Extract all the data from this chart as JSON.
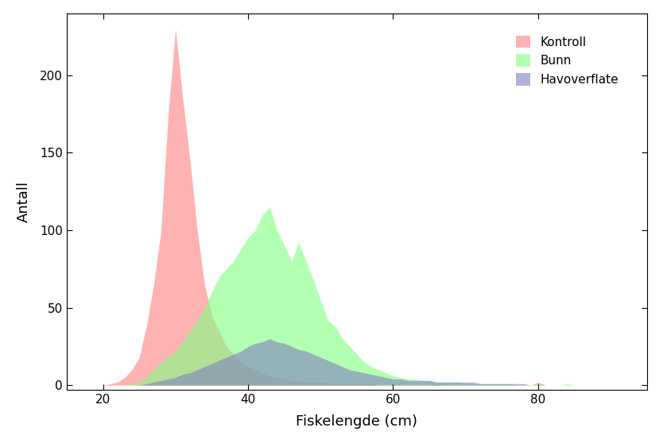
{
  "title": "",
  "xlabel": "Fiskelengde (cm)",
  "ylabel": "Antall",
  "xlim": [
    15,
    95
  ],
  "ylim": [
    -3,
    240
  ],
  "xticks": [
    20,
    40,
    60,
    80
  ],
  "yticks": [
    0,
    50,
    100,
    150,
    200
  ],
  "legend_labels": [
    "Kontroll",
    "Bunn",
    "Havoverflate"
  ],
  "colors": [
    "#FF8080",
    "#80FF80",
    "#8080C0"
  ],
  "alpha": 0.6,
  "background_color": "#FFFFFF",
  "kontroll": {
    "x": [
      15,
      16,
      17,
      18,
      19,
      20,
      21,
      22,
      23,
      24,
      25,
      26,
      27,
      28,
      29,
      30,
      31,
      32,
      33,
      34,
      35,
      36,
      37,
      38,
      39,
      40,
      41,
      42,
      43,
      44,
      45,
      46,
      47,
      48,
      49,
      50,
      51,
      52,
      53,
      54,
      55,
      56,
      57,
      58,
      59,
      60,
      61,
      62,
      63,
      64,
      65,
      66,
      67,
      68,
      69,
      70,
      71,
      72,
      73,
      74,
      75,
      76,
      77,
      78,
      79,
      80,
      81,
      82,
      83,
      84,
      85,
      86,
      87,
      88,
      89,
      90,
      91,
      92,
      93,
      94
    ],
    "y": [
      0,
      0,
      0,
      0,
      0,
      0,
      1,
      2,
      5,
      10,
      18,
      38,
      65,
      100,
      175,
      230,
      185,
      145,
      100,
      65,
      45,
      35,
      25,
      20,
      15,
      12,
      10,
      8,
      6,
      5,
      4,
      3,
      3,
      2,
      2,
      2,
      1,
      1,
      1,
      1,
      1,
      1,
      1,
      0,
      0,
      0,
      0,
      0,
      0,
      0,
      0,
      1,
      0,
      0,
      0,
      0,
      0,
      0,
      0,
      0,
      0,
      0,
      0,
      0,
      0,
      2,
      0,
      0,
      0,
      0,
      0,
      0,
      0,
      0,
      0,
      0,
      0,
      0,
      0,
      0
    ]
  },
  "bunn": {
    "x": [
      15,
      16,
      17,
      18,
      19,
      20,
      21,
      22,
      23,
      24,
      25,
      26,
      27,
      28,
      29,
      30,
      31,
      32,
      33,
      34,
      35,
      36,
      37,
      38,
      39,
      40,
      41,
      42,
      43,
      44,
      45,
      46,
      47,
      48,
      49,
      50,
      51,
      52,
      53,
      54,
      55,
      56,
      57,
      58,
      59,
      60,
      61,
      62,
      63,
      64,
      65,
      66,
      67,
      68,
      69,
      70,
      71,
      72,
      73,
      74,
      75,
      76,
      77,
      78,
      79,
      80,
      81,
      82,
      83,
      84,
      85,
      86,
      87,
      88,
      89,
      90,
      91,
      92,
      93,
      94
    ],
    "y": [
      0,
      0,
      0,
      0,
      0,
      0,
      0,
      0,
      0,
      1,
      2,
      5,
      10,
      15,
      18,
      22,
      28,
      35,
      42,
      50,
      60,
      70,
      75,
      80,
      88,
      95,
      100,
      110,
      115,
      100,
      90,
      80,
      92,
      80,
      68,
      55,
      42,
      38,
      30,
      25,
      20,
      15,
      12,
      10,
      8,
      6,
      5,
      4,
      4,
      3,
      3,
      2,
      2,
      2,
      2,
      1,
      1,
      1,
      1,
      1,
      1,
      1,
      0,
      0,
      0,
      1,
      0,
      0,
      0,
      1,
      0,
      0,
      0,
      0,
      0,
      0,
      0,
      0,
      0,
      0
    ]
  },
  "havoverflate": {
    "x": [
      15,
      16,
      17,
      18,
      19,
      20,
      21,
      22,
      23,
      24,
      25,
      26,
      27,
      28,
      29,
      30,
      31,
      32,
      33,
      34,
      35,
      36,
      37,
      38,
      39,
      40,
      41,
      42,
      43,
      44,
      45,
      46,
      47,
      48,
      49,
      50,
      51,
      52,
      53,
      54,
      55,
      56,
      57,
      58,
      59,
      60,
      61,
      62,
      63,
      64,
      65,
      66,
      67,
      68,
      69,
      70,
      71,
      72,
      73,
      74,
      75,
      76,
      77,
      78,
      79,
      80,
      81,
      82,
      83,
      84,
      85,
      86,
      87,
      88,
      89,
      90,
      91,
      92,
      93,
      94
    ],
    "y": [
      0,
      0,
      0,
      0,
      0,
      0,
      0,
      0,
      0,
      0,
      0,
      1,
      2,
      3,
      4,
      5,
      7,
      8,
      10,
      12,
      14,
      16,
      18,
      20,
      22,
      25,
      27,
      28,
      30,
      28,
      27,
      25,
      23,
      22,
      20,
      18,
      16,
      14,
      12,
      10,
      9,
      8,
      7,
      6,
      5,
      4,
      4,
      3,
      3,
      3,
      3,
      2,
      2,
      2,
      2,
      2,
      2,
      1,
      1,
      1,
      1,
      1,
      1,
      1,
      0,
      0,
      0,
      0,
      0,
      0,
      0,
      0,
      0,
      0,
      0,
      0,
      0,
      0,
      0,
      0
    ]
  }
}
